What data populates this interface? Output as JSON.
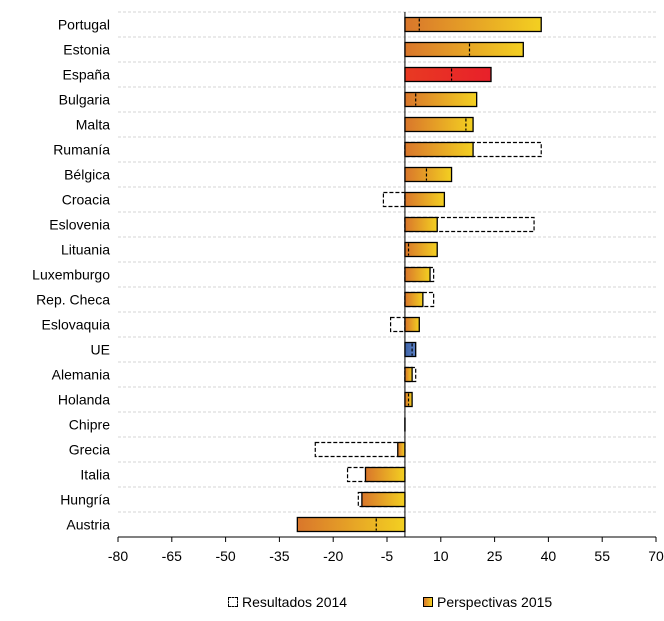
{
  "chart_data": {
    "type": "bar",
    "orientation": "horizontal",
    "categories": [
      "Portugal",
      "Estonia",
      "España",
      "Bulgaria",
      "Malta",
      "Rumanía",
      "Bélgica",
      "Croacia",
      "Eslovenia",
      "Lituania",
      "Luxemburgo",
      "Rep. Checa",
      "Eslovaquia",
      "UE",
      "Alemania",
      "Holanda",
      "Chipre",
      "Grecia",
      "Italia",
      "Hungría",
      "Austria"
    ],
    "series": [
      {
        "name": "Resultados 2014",
        "style": "dashed-outline",
        "values": [
          4,
          18,
          13,
          3,
          17,
          38,
          6,
          -6,
          36,
          1,
          8,
          8,
          -4,
          2,
          3,
          1,
          0,
          -25,
          -16,
          -13,
          -8
        ]
      },
      {
        "name": "Perspectivas 2015",
        "style": "gradient-bar",
        "values": [
          38,
          33,
          24,
          20,
          19,
          19,
          13,
          11,
          9,
          9,
          7,
          5,
          4,
          3,
          2,
          2,
          0,
          -2,
          -11,
          -12,
          -30
        ]
      }
    ],
    "highlight": {
      "España": "#e8202a",
      "UE": "#4a6fb5"
    },
    "gradient_colors": [
      "#d9762b",
      "#f3d021"
    ],
    "xlim": [
      -80,
      70
    ],
    "xticks": [
      "-80",
      "-65",
      "-50",
      "-35",
      "-20",
      "-5",
      "10",
      "25",
      "40",
      "55",
      "70"
    ],
    "grid": "horizontal-dashed",
    "legend": "bottom"
  }
}
